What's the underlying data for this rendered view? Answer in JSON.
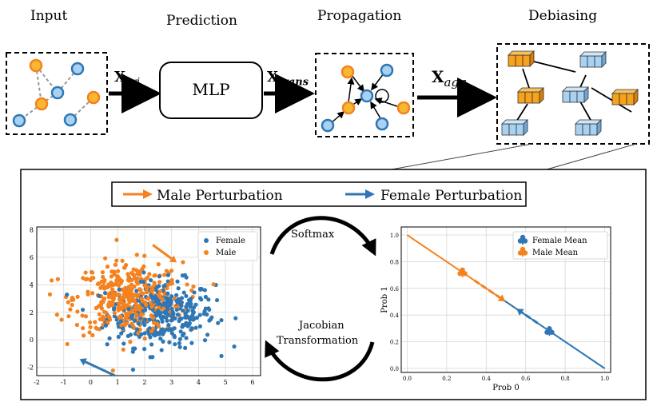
{
  "stages": {
    "input": "Input",
    "prediction": "Prediction",
    "propagation": "Propagation",
    "debiasing": "Debiasing"
  },
  "mlp_label": "MLP",
  "arrow_labels": {
    "x_ori": {
      "base": "X",
      "sub": "ori"
    },
    "x_trans": {
      "base": "X",
      "sub": "trans"
    },
    "x_agg": {
      "base": "X",
      "sub": "agg"
    }
  },
  "perturbation_legend": {
    "male": "Male Perturbation",
    "female": "Female Perturbation"
  },
  "cycle_labels": {
    "softmax": "Softmax",
    "jacobian_line1": "Jacobian",
    "jacobian_line2": "Transformation"
  },
  "colors": {
    "male": "#f5821f",
    "female": "#2f77b4",
    "node_fill_orange": "#f7b731",
    "node_fill_blue": "#a9d1f2"
  },
  "chart_data": [
    {
      "type": "scatter",
      "title": "",
      "xlabel": "",
      "ylabel": "",
      "xlim": [
        -2,
        6.3
      ],
      "ylim": [
        -2.6,
        8.2
      ],
      "xticks": [
        -2,
        -1,
        0,
        1,
        2,
        3,
        4,
        5,
        6
      ],
      "yticks": [
        -2,
        0,
        2,
        4,
        6,
        8
      ],
      "grid": true,
      "legend": "top-right",
      "series": [
        {
          "name": "Female",
          "color": "#2f77b4",
          "center": [
            2.6,
            1.9
          ],
          "spread": [
            1.0,
            1.2
          ],
          "count": 350
        },
        {
          "name": "Male",
          "color": "#f5821f",
          "center": [
            1.4,
            3.0
          ],
          "spread": [
            1.0,
            1.3
          ],
          "count": 380
        }
      ],
      "annotations": [
        {
          "label": "Male Perturbation arrow",
          "from": [
            2.3,
            6.9
          ],
          "to": [
            3.0,
            5.9
          ]
        },
        {
          "label": "Female Perturbation arrow",
          "from": [
            0.9,
            -2.6
          ],
          "to": [
            -0.2,
            -1.6
          ]
        }
      ]
    },
    {
      "type": "line",
      "title": "",
      "xlabel": "Prob 0",
      "ylabel": "Prob 1",
      "xlim": [
        -0.03,
        1.03
      ],
      "ylim": [
        -0.03,
        1.06
      ],
      "xticks": [
        0.0,
        0.2,
        0.4,
        0.6,
        0.8,
        1.0
      ],
      "yticks": [
        0.0,
        0.2,
        0.4,
        0.6,
        0.8,
        1.0
      ],
      "xtick_labels": [
        "0.0",
        "0.2",
        "0.4",
        "0.6",
        "0.8",
        "1.0"
      ],
      "ytick_labels": [
        "0.0",
        "0.2",
        "0.4",
        "0.6",
        "0.8",
        "1.0"
      ],
      "grid": true,
      "legend": "top-right",
      "series": [
        {
          "name": "Male",
          "color": "#f5821f",
          "x": [
            0.0,
            0.6
          ],
          "y": [
            1.0,
            0.4
          ]
        },
        {
          "name": "Female",
          "color": "#2f77b4",
          "x": [
            0.45,
            1.0
          ],
          "y": [
            0.55,
            0.0
          ]
        }
      ],
      "means": [
        {
          "name": "Female Mean",
          "color": "#2f77b4",
          "x": 0.72,
          "y": 0.28
        },
        {
          "name": "Male Mean",
          "color": "#f5821f",
          "x": 0.28,
          "y": 0.72
        }
      ],
      "annotations": [
        {
          "label": "Male shift",
          "from": [
            0.34,
            0.66
          ],
          "to": [
            0.47,
            0.53
          ]
        },
        {
          "label": "Female shift",
          "from": [
            0.66,
            0.34
          ],
          "to": [
            0.58,
            0.42
          ]
        }
      ]
    }
  ]
}
